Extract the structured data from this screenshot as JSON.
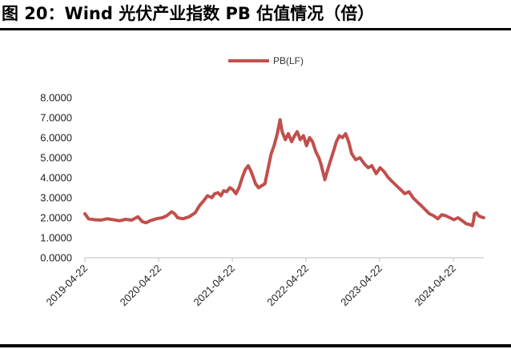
{
  "title": "图 20：Wind 光伏产业指数 PB 估值情况（倍）",
  "chart_data": {
    "type": "line",
    "title": "图 20：Wind 光伏产业指数 PB 估值情况（倍）",
    "xlabel": "",
    "ylabel": "",
    "ylim": [
      0,
      8
    ],
    "xlim": [
      "2019-04-22",
      "2024-09-20"
    ],
    "grid": false,
    "legend": "top-center",
    "y_ticks": [
      "0.0000",
      "1.0000",
      "2.0000",
      "3.0000",
      "4.0000",
      "5.0000",
      "6.0000",
      "7.0000",
      "8.0000"
    ],
    "x_ticks": [
      "2019-04-22",
      "2020-04-22",
      "2021-04-22",
      "2022-04-22",
      "2023-04-22",
      "2024-04-22"
    ],
    "series": [
      {
        "name": "PB(LF)",
        "color": "#c0504d",
        "points": [
          [
            "2019-04-22",
            2.2
          ],
          [
            "2019-05-10",
            1.95
          ],
          [
            "2019-06-10",
            1.9
          ],
          [
            "2019-07-10",
            1.88
          ],
          [
            "2019-08-10",
            1.95
          ],
          [
            "2019-09-10",
            1.9
          ],
          [
            "2019-10-10",
            1.85
          ],
          [
            "2019-11-10",
            1.92
          ],
          [
            "2019-12-10",
            1.88
          ],
          [
            "2020-01-10",
            2.05
          ],
          [
            "2020-02-01",
            1.8
          ],
          [
            "2020-02-20",
            1.75
          ],
          [
            "2020-03-10",
            1.85
          ],
          [
            "2020-04-10",
            1.95
          ],
          [
            "2020-05-10",
            2.0
          ],
          [
            "2020-06-01",
            2.1
          ],
          [
            "2020-06-25",
            2.3
          ],
          [
            "2020-07-10",
            2.2
          ],
          [
            "2020-07-25",
            2.0
          ],
          [
            "2020-08-20",
            1.95
          ],
          [
            "2020-09-20",
            2.05
          ],
          [
            "2020-10-20",
            2.25
          ],
          [
            "2020-11-10",
            2.6
          ],
          [
            "2020-12-01",
            2.85
          ],
          [
            "2020-12-20",
            3.1
          ],
          [
            "2021-01-10",
            3.0
          ],
          [
            "2021-01-25",
            3.2
          ],
          [
            "2021-02-10",
            3.25
          ],
          [
            "2021-02-25",
            3.1
          ],
          [
            "2021-03-10",
            3.35
          ],
          [
            "2021-03-25",
            3.3
          ],
          [
            "2021-04-10",
            3.5
          ],
          [
            "2021-04-25",
            3.4
          ],
          [
            "2021-05-10",
            3.2
          ],
          [
            "2021-05-25",
            3.5
          ],
          [
            "2021-06-10",
            4.0
          ],
          [
            "2021-06-25",
            4.4
          ],
          [
            "2021-07-10",
            4.6
          ],
          [
            "2021-07-20",
            4.4
          ],
          [
            "2021-08-01",
            4.1
          ],
          [
            "2021-08-15",
            3.7
          ],
          [
            "2021-08-30",
            3.5
          ],
          [
            "2021-09-15",
            3.6
          ],
          [
            "2021-10-01",
            3.7
          ],
          [
            "2021-10-15",
            4.4
          ],
          [
            "2021-11-01",
            5.2
          ],
          [
            "2021-11-15",
            5.6
          ],
          [
            "2021-12-01",
            6.2
          ],
          [
            "2021-12-15",
            6.9
          ],
          [
            "2021-12-25",
            6.3
          ],
          [
            "2022-01-10",
            5.9
          ],
          [
            "2022-01-25",
            6.2
          ],
          [
            "2022-02-10",
            5.8
          ],
          [
            "2022-02-25",
            6.1
          ],
          [
            "2022-03-10",
            6.3
          ],
          [
            "2022-03-25",
            5.9
          ],
          [
            "2022-04-10",
            6.1
          ],
          [
            "2022-04-25",
            5.6
          ],
          [
            "2022-05-10",
            6.0
          ],
          [
            "2022-05-25",
            5.8
          ],
          [
            "2022-06-10",
            5.3
          ],
          [
            "2022-06-25",
            5.0
          ],
          [
            "2022-07-05",
            4.7
          ],
          [
            "2022-07-15",
            4.3
          ],
          [
            "2022-07-25",
            3.9
          ],
          [
            "2022-08-05",
            4.3
          ],
          [
            "2022-08-20",
            4.8
          ],
          [
            "2022-09-05",
            5.3
          ],
          [
            "2022-09-20",
            5.8
          ],
          [
            "2022-10-05",
            6.1
          ],
          [
            "2022-10-20",
            6.0
          ],
          [
            "2022-11-05",
            6.2
          ],
          [
            "2022-11-20",
            5.8
          ],
          [
            "2022-12-05",
            5.2
          ],
          [
            "2022-12-25",
            4.9
          ],
          [
            "2023-01-15",
            5.0
          ],
          [
            "2023-02-05",
            4.7
          ],
          [
            "2023-02-25",
            4.5
          ],
          [
            "2023-03-15",
            4.6
          ],
          [
            "2023-04-05",
            4.2
          ],
          [
            "2023-04-25",
            4.5
          ],
          [
            "2023-05-15",
            4.3
          ],
          [
            "2023-06-05",
            4.0
          ],
          [
            "2023-06-25",
            3.8
          ],
          [
            "2023-07-15",
            3.6
          ],
          [
            "2023-08-05",
            3.4
          ],
          [
            "2023-08-25",
            3.2
          ],
          [
            "2023-09-15",
            3.3
          ],
          [
            "2023-10-05",
            3.0
          ],
          [
            "2023-10-25",
            2.8
          ],
          [
            "2023-11-15",
            2.6
          ],
          [
            "2023-12-05",
            2.4
          ],
          [
            "2023-12-25",
            2.2
          ],
          [
            "2024-01-15",
            2.1
          ],
          [
            "2024-02-05",
            1.95
          ],
          [
            "2024-02-25",
            2.15
          ],
          [
            "2024-03-15",
            2.1
          ],
          [
            "2024-04-05",
            2.0
          ],
          [
            "2024-04-25",
            1.9
          ],
          [
            "2024-05-15",
            2.0
          ],
          [
            "2024-06-05",
            1.85
          ],
          [
            "2024-06-25",
            1.7
          ],
          [
            "2024-07-15",
            1.65
          ],
          [
            "2024-07-25",
            1.6
          ],
          [
            "2024-08-01",
            1.9
          ],
          [
            "2024-08-05",
            2.2
          ],
          [
            "2024-08-15",
            2.25
          ],
          [
            "2024-08-25",
            2.1
          ],
          [
            "2024-09-05",
            2.05
          ],
          [
            "2024-09-20",
            2.0
          ]
        ]
      }
    ]
  }
}
